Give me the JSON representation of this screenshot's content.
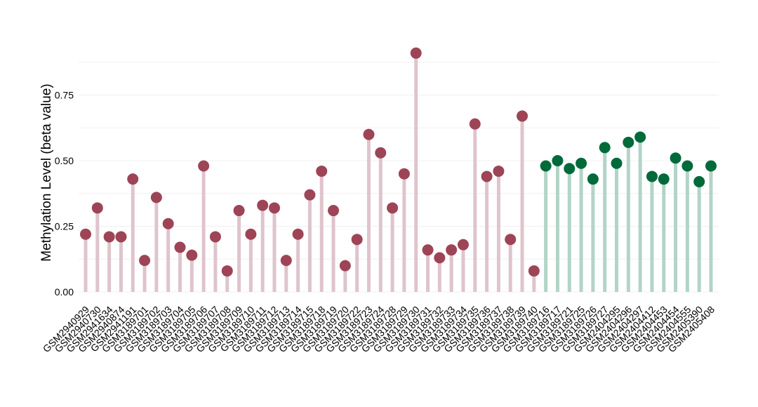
{
  "chart_data": {
    "type": "lollipop",
    "ylabel": "Methylation Level (beta value)",
    "xlabel": "",
    "ylim": [
      0,
      0.97
    ],
    "yticks": [
      "0.00",
      "0.25",
      "0.50",
      "0.75"
    ],
    "ytick_values": [
      0,
      0.25,
      0.5,
      0.75
    ],
    "grid": true,
    "colors": {
      "group1_point": "#9e4457",
      "group1_stem": "#dfc4cc",
      "group2_point": "#016a3b",
      "group2_stem": "#b2d4c7",
      "grid": "#f0f0f0"
    },
    "categories": [
      "GSM2940929",
      "GSM2940730",
      "GSM2941634",
      "GSM2940874",
      "GSM2941191",
      "GSM3189701",
      "GSM3189702",
      "GSM3189703",
      "GSM3189704",
      "GSM3189705",
      "GSM3189706",
      "GSM3189707",
      "GSM3189708",
      "GSM3189709",
      "GSM3189710",
      "GSM3189711",
      "GSM3189712",
      "GSM3189713",
      "GSM3189714",
      "GSM3189715",
      "GSM3189718",
      "GSM3189719",
      "GSM3189720",
      "GSM3189722",
      "GSM3189723",
      "GSM3189724",
      "GSM3189728",
      "GSM3189729",
      "GSM3189730",
      "GSM3189731",
      "GSM3189732",
      "GSM3189733",
      "GSM3189734",
      "GSM3189735",
      "GSM3189736",
      "GSM3189737",
      "GSM3189738",
      "GSM3189739",
      "GSM3189740",
      "GSM3189716",
      "GSM3189717",
      "GSM3189721",
      "GSM3189725",
      "GSM3189726",
      "GSM3189727",
      "GSM2404295",
      "GSM2404296",
      "GSM2404297",
      "GSM2404412",
      "GSM2404453",
      "GSM2404454",
      "GSM2404555",
      "GSM2405390",
      "GSM2405408"
    ],
    "values": [
      0.22,
      0.32,
      0.21,
      0.21,
      0.43,
      0.12,
      0.36,
      0.26,
      0.17,
      0.14,
      0.48,
      0.21,
      0.08,
      0.31,
      0.22,
      0.33,
      0.32,
      0.12,
      0.22,
      0.37,
      0.46,
      0.31,
      0.1,
      0.2,
      0.6,
      0.53,
      0.32,
      0.45,
      0.91,
      0.16,
      0.13,
      0.16,
      0.18,
      0.64,
      0.44,
      0.46,
      0.2,
      0.67,
      0.08,
      0.48,
      0.5,
      0.47,
      0.49,
      0.43,
      0.55,
      0.49,
      0.57,
      0.59,
      0.44,
      0.43,
      0.51,
      0.48,
      0.42,
      0.48
    ],
    "groups": [
      1,
      1,
      1,
      1,
      1,
      1,
      1,
      1,
      1,
      1,
      1,
      1,
      1,
      1,
      1,
      1,
      1,
      1,
      1,
      1,
      1,
      1,
      1,
      1,
      1,
      1,
      1,
      1,
      1,
      1,
      1,
      1,
      1,
      1,
      1,
      1,
      1,
      1,
      1,
      2,
      2,
      2,
      2,
      2,
      2,
      2,
      2,
      2,
      2,
      2,
      2,
      2,
      2,
      2
    ]
  }
}
